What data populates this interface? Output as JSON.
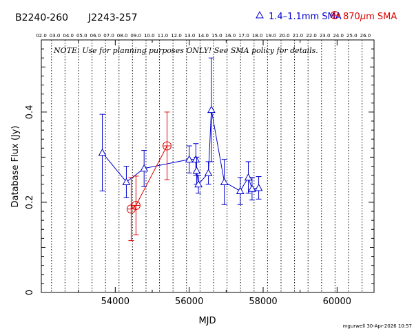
{
  "header": {
    "source_name": "B2240-260",
    "alt_name": "J2243-257",
    "legend_blue": "1.4–1.1mm SMA",
    "legend_red_prefix": "870",
    "legend_red_mu": "μ",
    "legend_red_suffix": "m SMA"
  },
  "note": "NOTE: Use for planning purposes ONLY!  See SMA policy for details.",
  "footer": "mgurwell 30-Apr-2026 10:57",
  "colors": {
    "blue": "#0000cc",
    "red": "#dd0000",
    "axis": "#000000"
  },
  "chart_data": {
    "type": "scatter",
    "xlabel": "MJD",
    "ylabel": "Database Flux (Jy)",
    "xlim": [
      52000,
      61000
    ],
    "ylim": [
      0,
      0.56
    ],
    "x_ticks": [
      54000,
      56000,
      58000,
      60000
    ],
    "x_tick_labels": [
      "54000",
      "56000",
      "58000",
      "60000"
    ],
    "y_ticks": [
      0,
      0.2,
      0.4
    ],
    "y_tick_labels": [
      "0",
      "0.2",
      "0.4"
    ],
    "top_axis_label_values": [
      52000,
      52365,
      52730,
      53095,
      53461,
      53826,
      54191,
      54556,
      54922,
      55287,
      55652,
      56017,
      56383,
      56748,
      57113,
      57478,
      57844,
      58209,
      58574,
      58939,
      59305,
      59670,
      60035,
      60400,
      60766
    ],
    "top_axis_labels": [
      "02.0",
      "03.0",
      "04.0",
      "05.0",
      "06.0",
      "07.0",
      "08.0",
      "09.0",
      "10.0",
      "11.0",
      "12.0",
      "13.0",
      "14.0",
      "15.0",
      "16.0",
      "17.0",
      "18.0",
      "19.0",
      "20.0",
      "21.0",
      "22.0",
      "23.0",
      "24.0",
      "25.0",
      "26.0"
    ],
    "year_lines": [
      52275,
      52640,
      53005,
      53371,
      53736,
      54101,
      54466,
      54832,
      55197,
      55562,
      55927,
      56293,
      56658,
      57023,
      57388,
      57754,
      58119,
      58484,
      58849,
      59215,
      59580,
      59945,
      60310,
      60676
    ],
    "series": [
      {
        "name": "1.4–1.1mm SMA",
        "marker": "triangle",
        "points": [
          {
            "x": 53650,
            "y": 0.31,
            "err": 0.085
          },
          {
            "x": 54300,
            "y": 0.245,
            "err": 0.035
          },
          {
            "x": 54780,
            "y": 0.275,
            "err": 0.04
          },
          {
            "x": 56000,
            "y": 0.295,
            "err": 0.03
          },
          {
            "x": 56180,
            "y": 0.295,
            "err": 0.035
          },
          {
            "x": 56200,
            "y": 0.27,
            "err": 0.03
          },
          {
            "x": 56250,
            "y": 0.24,
            "err": 0.02
          },
          {
            "x": 56520,
            "y": 0.265,
            "err": 0.025
          },
          {
            "x": 56600,
            "y": 0.405,
            "err": 0.115
          },
          {
            "x": 56950,
            "y": 0.245,
            "err": 0.05
          },
          {
            "x": 57380,
            "y": 0.225,
            "err": 0.03
          },
          {
            "x": 57600,
            "y": 0.255,
            "err": 0.035
          },
          {
            "x": 57700,
            "y": 0.23,
            "err": 0.025
          },
          {
            "x": 57880,
            "y": 0.232,
            "err": 0.025
          }
        ]
      },
      {
        "name": "870μm SMA",
        "marker": "circle-plus",
        "points": [
          {
            "x": 54430,
            "y": 0.185,
            "err": 0.07
          },
          {
            "x": 54560,
            "y": 0.193,
            "err": 0.065
          },
          {
            "x": 55400,
            "y": 0.325,
            "err": 0.075
          }
        ]
      }
    ]
  }
}
